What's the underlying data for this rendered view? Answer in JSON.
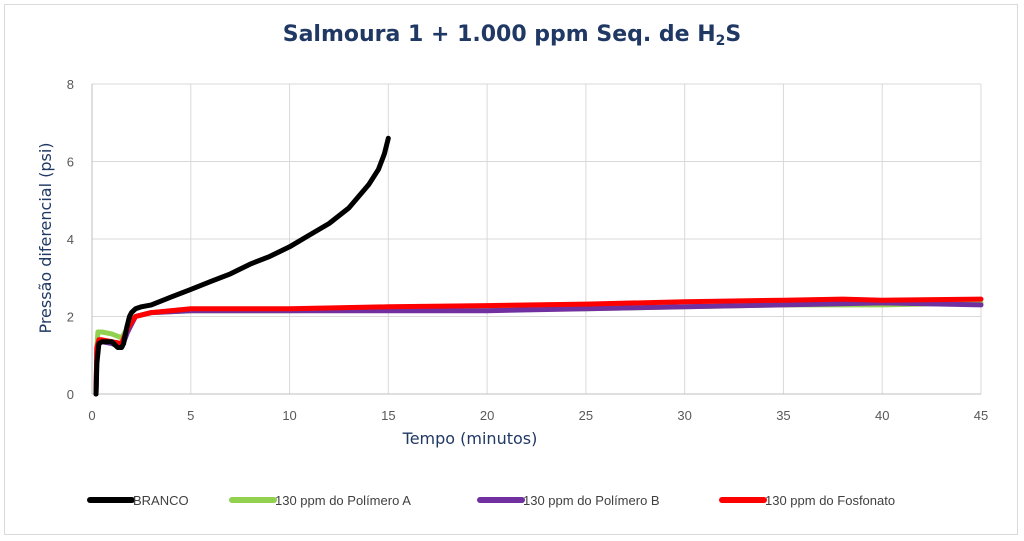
{
  "chart_data": {
    "type": "line",
    "title_main": "Salmoura 1 + 1.000 ppm Seq. de H",
    "title_sub": "2",
    "title_end": "S",
    "xlabel": "Tempo (minutos)",
    "ylabel": "Pressão diferencial (psi)",
    "xlim": [
      0,
      45
    ],
    "ylim": [
      0,
      8
    ],
    "xticks": [
      0,
      5,
      10,
      15,
      20,
      25,
      30,
      35,
      40,
      45
    ],
    "yticks": [
      0,
      2,
      4,
      6,
      8
    ],
    "grid": true,
    "legend_position": "bottom",
    "series": [
      {
        "name": "BRANCO",
        "color": "#000000",
        "x": [
          0.2,
          0.25,
          0.35,
          0.5,
          1.0,
          1.3,
          1.5,
          1.6,
          1.75,
          1.9,
          2.0,
          2.2,
          2.5,
          3.0,
          4.0,
          5.0,
          6.0,
          7.0,
          8.0,
          9.0,
          10.0,
          11.0,
          12.0,
          13.0,
          13.5,
          14.0,
          14.5,
          14.8,
          15.0
        ],
        "y": [
          0,
          0.8,
          1.3,
          1.35,
          1.35,
          1.2,
          1.2,
          1.3,
          1.7,
          2.0,
          2.1,
          2.2,
          2.25,
          2.3,
          2.5,
          2.7,
          2.9,
          3.1,
          3.35,
          3.55,
          3.8,
          4.1,
          4.4,
          4.8,
          5.1,
          5.4,
          5.8,
          6.2,
          6.6
        ]
      },
      {
        "name": "130 ppm do Polímero A",
        "color": "#92d050",
        "x": [
          0.2,
          0.25,
          0.3,
          0.5,
          1.0,
          1.5,
          1.8,
          2.2,
          3,
          5,
          10,
          15,
          20,
          25,
          30,
          35,
          40,
          45
        ],
        "y": [
          0,
          1.2,
          1.6,
          1.6,
          1.55,
          1.45,
          1.7,
          2.0,
          2.1,
          2.15,
          2.15,
          2.2,
          2.2,
          2.2,
          2.25,
          2.3,
          2.3,
          2.35
        ]
      },
      {
        "name": "130 ppm do Polímero B",
        "color": "#7030a0",
        "x": [
          0.2,
          0.25,
          0.35,
          0.5,
          1.0,
          1.5,
          1.8,
          2.2,
          3,
          5,
          10,
          15,
          20,
          25,
          30,
          35,
          40,
          45
        ],
        "y": [
          0,
          1.2,
          1.35,
          1.35,
          1.3,
          1.2,
          1.6,
          2.0,
          2.1,
          2.15,
          2.15,
          2.15,
          2.15,
          2.2,
          2.25,
          2.3,
          2.35,
          2.3
        ]
      },
      {
        "name": "130 ppm do Fosfonato",
        "color": "#ff0000",
        "x": [
          0.2,
          0.25,
          0.35,
          0.5,
          1.0,
          1.5,
          1.8,
          2.2,
          3,
          5,
          10,
          15,
          20,
          25,
          30,
          35,
          38,
          40,
          45
        ],
        "y": [
          0,
          1.2,
          1.4,
          1.4,
          1.35,
          1.3,
          1.7,
          2.0,
          2.1,
          2.2,
          2.2,
          2.25,
          2.28,
          2.32,
          2.38,
          2.42,
          2.45,
          2.42,
          2.45
        ]
      }
    ]
  }
}
